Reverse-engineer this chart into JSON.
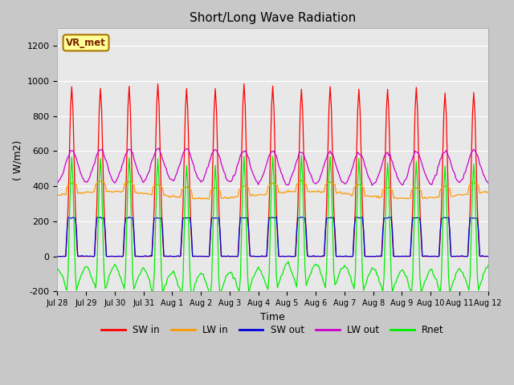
{
  "title": "Short/Long Wave Radiation",
  "xlabel": "Time",
  "ylabel": "( W/m2)",
  "ylim": [
    -200,
    1300
  ],
  "yticks": [
    -200,
    0,
    200,
    400,
    600,
    800,
    1000,
    1200
  ],
  "fig_bg_color": "#c8c8c8",
  "plot_bg_color": "#e8e8e8",
  "grid_color": "#ffffff",
  "series": [
    "SW in",
    "LW in",
    "SW out",
    "LW out",
    "Rnet"
  ],
  "colors": [
    "#ff0000",
    "#ff9900",
    "#0000dd",
    "#cc00cc",
    "#00ee00"
  ],
  "label_box_text": "VR_met",
  "label_box_facecolor": "#ffff99",
  "label_box_edgecolor": "#aa7700",
  "n_days": 16
}
